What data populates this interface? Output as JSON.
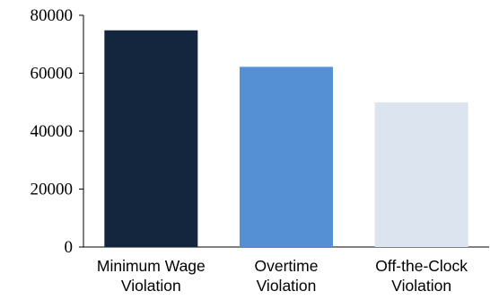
{
  "chart_data": {
    "type": "bar",
    "title": "",
    "xlabel": "",
    "ylabel": "",
    "categories": [
      [
        "Minimum Wage",
        "Violation"
      ],
      [
        "Overtime",
        "Violation"
      ],
      [
        "Off-the-Clock",
        "Violation"
      ]
    ],
    "values": [
      74800,
      62200,
      49900
    ],
    "colors": [
      "#14253e",
      "#5690d4",
      "#dce5ef"
    ],
    "ylim": [
      0,
      80000
    ],
    "yticks": [
      "0",
      "20000",
      "40000",
      "60000",
      "80000"
    ],
    "ytick_values": [
      0,
      20000,
      40000,
      60000,
      80000
    ],
    "grid": false,
    "legend": "none"
  }
}
